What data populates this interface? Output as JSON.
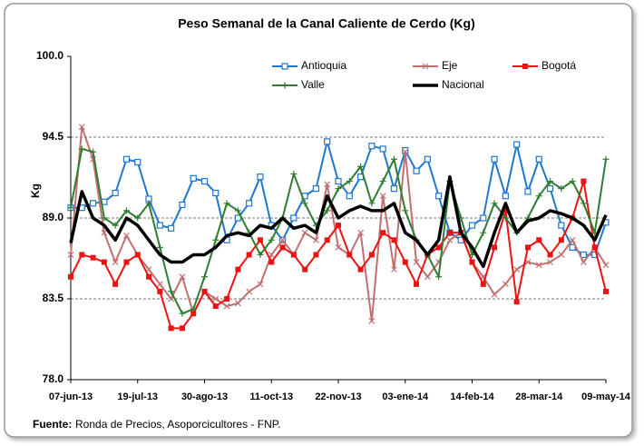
{
  "chart_data": {
    "type": "line",
    "title": "Peso Semanal de la Canal Caliente de Cerdo (Kg)",
    "y_label": "Kg",
    "source_label": "Fuente:",
    "source_text": "Ronda de Precios, Asoporcicultores - FNP.",
    "categories": [
      "07-jun-13",
      null,
      null,
      null,
      null,
      null,
      "19-jul-13",
      null,
      null,
      null,
      null,
      null,
      "30-ago-13",
      null,
      null,
      null,
      null,
      null,
      "11-oct-13",
      null,
      null,
      null,
      null,
      null,
      "22-nov-13",
      null,
      null,
      null,
      null,
      null,
      "03-ene-14",
      null,
      null,
      null,
      null,
      null,
      "14-feb-14",
      null,
      null,
      null,
      null,
      null,
      "28-mar-14",
      null,
      null,
      null,
      null,
      null,
      "09-may-14"
    ],
    "ylim": [
      78,
      100
    ],
    "yticks": [
      {
        "value": 78,
        "label": "78.0"
      },
      83.5,
      {
        "value": 89,
        "label": "89.0"
      },
      94.5,
      {
        "value": 100,
        "label": "100.0"
      }
    ],
    "grid": true,
    "series": [
      {
        "name": "Antioquia",
        "color": "#1f77d0",
        "marker": "square-open",
        "line_width": 2,
        "values": [
          89.7,
          89.7,
          90.0,
          90.1,
          90.7,
          93.0,
          92.8,
          90.3,
          88.5,
          88.3,
          89.9,
          91.7,
          91.5,
          90.7,
          87.5,
          89.0,
          90.0,
          91.8,
          88.5,
          87.5,
          89.0,
          90.5,
          91.0,
          94.2,
          91.5,
          90.5,
          91.8,
          93.9,
          93.7,
          91.0,
          93.6,
          92.2,
          93.0,
          90.5,
          88.0,
          87.5,
          88.5,
          89.0,
          93.0,
          90.5,
          94.0,
          90.8,
          93.0,
          91.0,
          88.5,
          87.0,
          86.5,
          86.5,
          88.7
        ]
      },
      {
        "name": "Eje",
        "color": "#c0706f",
        "marker": "x",
        "line_width": 2,
        "values": [
          86.5,
          95.2,
          93.0,
          88.0,
          86.0,
          87.8,
          86.5,
          85.5,
          84.5,
          83.5,
          85.0,
          82.5,
          84.0,
          83.5,
          83.0,
          83.2,
          84.0,
          84.5,
          86.5,
          87.5,
          86.5,
          88.0,
          87.5,
          91.3,
          87.0,
          86.5,
          88.0,
          82.0,
          90.5,
          85.5,
          93.5,
          86.0,
          85.0,
          86.0,
          87.5,
          88.0,
          86.0,
          85.0,
          83.8,
          84.5,
          85.5,
          86.0,
          85.8,
          86.0,
          86.5,
          87.5,
          86.0,
          87.0,
          85.8
        ]
      },
      {
        "name": "Bogotá",
        "color": "#ee1111",
        "marker": "square",
        "line_width": 2,
        "values": [
          85.0,
          86.5,
          86.3,
          86.0,
          84.5,
          86.0,
          86.5,
          85.0,
          84.0,
          81.5,
          81.5,
          82.5,
          84.0,
          83.0,
          83.5,
          85.5,
          86.5,
          87.5,
          86.0,
          87.0,
          86.5,
          85.5,
          86.5,
          87.5,
          88.5,
          86.5,
          85.5,
          86.5,
          88.0,
          87.5,
          86.0,
          84.5,
          86.5,
          87.0,
          88.0,
          88.0,
          86.0,
          84.5,
          87.0,
          89.5,
          83.3,
          87.0,
          87.5,
          86.5,
          87.5,
          89.0,
          91.5,
          87.0,
          84.0
        ]
      },
      {
        "name": "Valle",
        "color": "#2e7d32",
        "marker": "plus",
        "line_width": 2,
        "values": [
          89.7,
          93.7,
          93.5,
          89.0,
          88.5,
          89.5,
          89.0,
          90.0,
          87.0,
          84.0,
          82.5,
          82.8,
          85.0,
          87.5,
          90.0,
          89.5,
          88.0,
          86.5,
          87.5,
          89.0,
          92.0,
          90.0,
          88.5,
          89.5,
          91.0,
          91.5,
          92.5,
          90.0,
          91.5,
          93.0,
          89.5,
          87.5,
          86.5,
          85.0,
          91.5,
          89.0,
          86.5,
          88.0,
          90.0,
          89.0,
          88.0,
          89.0,
          90.5,
          91.5,
          91.0,
          91.5,
          90.0,
          88.0,
          93.0
        ]
      },
      {
        "name": "Nacional",
        "color": "#000000",
        "marker": "none",
        "line_width": 3.5,
        "values": [
          87.3,
          90.8,
          89.0,
          88.5,
          87.5,
          89.0,
          88.5,
          87.5,
          86.5,
          86.0,
          86.0,
          86.5,
          86.5,
          87.0,
          87.8,
          88.0,
          87.8,
          88.5,
          88.3,
          89.0,
          88.3,
          88.5,
          88.0,
          90.5,
          89.0,
          89.5,
          89.8,
          89.5,
          89.5,
          90.0,
          88.0,
          87.5,
          86.5,
          87.5,
          91.8,
          88.0,
          87.0,
          85.7,
          88.0,
          90.0,
          88.0,
          88.8,
          89.0,
          89.5,
          89.3,
          89.0,
          88.5,
          87.5,
          89.2
        ]
      }
    ]
  }
}
